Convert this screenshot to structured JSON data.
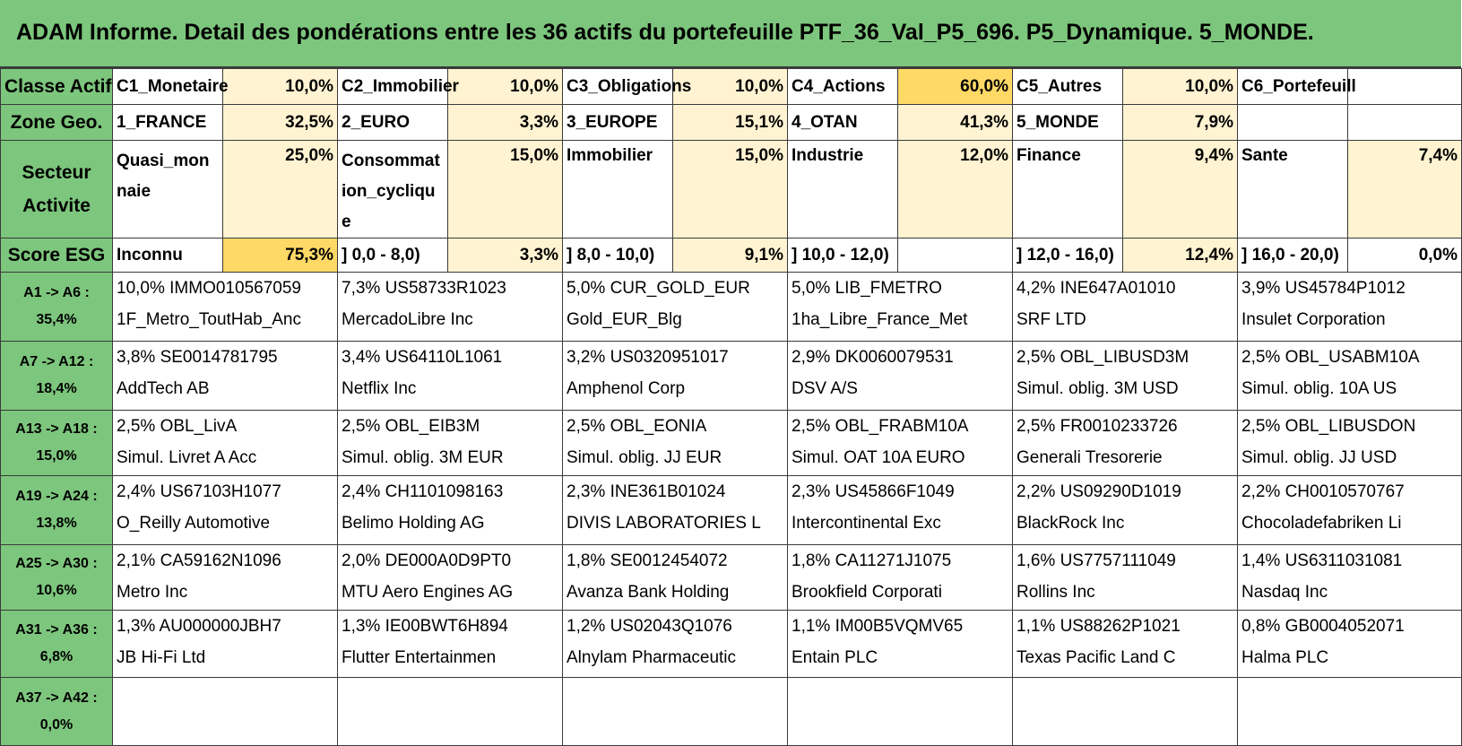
{
  "title": "ADAM Informe. Detail des pondérations entre les 36 actifs du portefeuille PTF_36_Val_P5_696. P5_Dynamique. 5_MONDE.",
  "summary_rows": [
    {
      "header": "Classe Actif",
      "cells": [
        {
          "label": "C1_Monetaire",
          "value": "10,0%"
        },
        {
          "label": "C2_Immobilier",
          "value": "10,0%"
        },
        {
          "label": "C3_Obligations",
          "value": "10,0%"
        },
        {
          "label": "C4_Actions",
          "value": "60,0%"
        },
        {
          "label": "C5_Autres",
          "value": "10,0%"
        },
        {
          "label": "C6_Portefeuill",
          "value": ""
        }
      ]
    },
    {
      "header": "Zone Geo.",
      "cells": [
        {
          "label": "1_FRANCE",
          "value": "32,5%"
        },
        {
          "label": "2_EURO",
          "value": "3,3%"
        },
        {
          "label": "3_EUROPE",
          "value": "15,1%"
        },
        {
          "label": "4_OTAN",
          "value": "41,3%"
        },
        {
          "label": "5_MONDE",
          "value": "7,9%"
        },
        {
          "label": "",
          "value": ""
        }
      ]
    },
    {
      "header": "Secteur Activite",
      "cells": [
        {
          "label": "Quasi_monnaie",
          "value": "25,0%"
        },
        {
          "label": "Consommation_cyclique",
          "value": "15,0%"
        },
        {
          "label": "Immobilier",
          "value": "15,0%"
        },
        {
          "label": "Industrie",
          "value": "12,0%"
        },
        {
          "label": "Finance",
          "value": "9,4%"
        },
        {
          "label": "Sante",
          "value": "7,4%"
        }
      ]
    },
    {
      "header": "Score ESG",
      "cells": [
        {
          "label": "Inconnu",
          "value": "75,3%"
        },
        {
          "label": "] 0,0 - 8,0)",
          "value": "3,3%"
        },
        {
          "label": "] 8,0 - 10,0)",
          "value": "9,1%"
        },
        {
          "label": "] 10,0 - 12,0)",
          "value": ""
        },
        {
          "label": "] 12,0 - 16,0)",
          "value": "12,4%"
        },
        {
          "label": "] 16,0 - 20,0)",
          "value": "0,0%"
        }
      ]
    }
  ],
  "asset_rows": [
    {
      "range": "A1 -> A6 :",
      "total": "35,4%",
      "assets": [
        {
          "line1": "10,0% IMMO010567059",
          "line2": "1F_Metro_ToutHab_Anc"
        },
        {
          "line1": "7,3% US58733R1023",
          "line2": "MercadoLibre Inc"
        },
        {
          "line1": "5,0% CUR_GOLD_EUR",
          "line2": "Gold_EUR_Blg"
        },
        {
          "line1": "5,0% LIB_FMETRO",
          "line2": "1ha_Libre_France_Met"
        },
        {
          "line1": "4,2% INE647A01010",
          "line2": "SRF LTD"
        },
        {
          "line1": "3,9% US45784P1012",
          "line2": "Insulet Corporation"
        }
      ]
    },
    {
      "range": "A7 -> A12 :",
      "total": "18,4%",
      "assets": [
        {
          "line1": "3,8% SE0014781795",
          "line2": "AddTech AB"
        },
        {
          "line1": "3,4% US64110L1061",
          "line2": "Netflix Inc"
        },
        {
          "line1": "3,2% US0320951017",
          "line2": "Amphenol Corp"
        },
        {
          "line1": "2,9% DK0060079531",
          "line2": "DSV A/S"
        },
        {
          "line1": "2,5% OBL_LIBUSD3M",
          "line2": "Simul. oblig. 3M USD"
        },
        {
          "line1": "2,5% OBL_USABM10A",
          "line2": "Simul. oblig. 10A US"
        }
      ]
    },
    {
      "range": "A13 -> A18 :",
      "total": "15,0%",
      "assets": [
        {
          "line1": "2,5% OBL_LivA",
          "line2": "Simul. Livret A Acc"
        },
        {
          "line1": "2,5% OBL_EIB3M",
          "line2": "Simul. oblig. 3M EUR"
        },
        {
          "line1": "2,5% OBL_EONIA",
          "line2": "Simul. oblig. JJ EUR"
        },
        {
          "line1": "2,5% OBL_FRABM10A",
          "line2": "Simul. OAT 10A EURO"
        },
        {
          "line1": "2,5% FR0010233726",
          "line2": "Generali Tresorerie"
        },
        {
          "line1": "2,5% OBL_LIBUSDON",
          "line2": "Simul. oblig. JJ USD"
        }
      ]
    },
    {
      "range": "A19 -> A24 :",
      "total": "13,8%",
      "assets": [
        {
          "line1": "2,4% US67103H1077",
          "line2": "O_Reilly Automotive"
        },
        {
          "line1": "2,4% CH1101098163",
          "line2": "Belimo Holding AG"
        },
        {
          "line1": "2,3% INE361B01024",
          "line2": "DIVIS LABORATORIES L"
        },
        {
          "line1": "2,3% US45866F1049",
          "line2": "Intercontinental Exc"
        },
        {
          "line1": "2,2% US09290D1019",
          "line2": "BlackRock Inc"
        },
        {
          "line1": "2,2% CH0010570767",
          "line2": "Chocoladefabriken Li"
        }
      ]
    },
    {
      "range": "A25 -> A30 :",
      "total": "10,6%",
      "assets": [
        {
          "line1": "2,1% CA59162N1096",
          "line2": "Metro Inc"
        },
        {
          "line1": "2,0% DE000A0D9PT0",
          "line2": "MTU Aero Engines AG"
        },
        {
          "line1": "1,8% SE0012454072",
          "line2": "Avanza Bank Holding"
        },
        {
          "line1": "1,8% CA11271J1075",
          "line2": "Brookfield Corporati"
        },
        {
          "line1": "1,6% US7757111049",
          "line2": "Rollins Inc"
        },
        {
          "line1": "1,4% US6311031081",
          "line2": "Nasdaq Inc"
        }
      ]
    },
    {
      "range": "A31 -> A36 :",
      "total": "6,8%",
      "assets": [
        {
          "line1": "1,3% AU000000JBH7",
          "line2": "JB Hi-Fi Ltd"
        },
        {
          "line1": "1,3% IE00BWT6H894",
          "line2": "Flutter Entertainmen"
        },
        {
          "line1": "1,2% US02043Q1076",
          "line2": "Alnylam Pharmaceutic"
        },
        {
          "line1": "1,1% IM00B5VQMV65",
          "line2": "Entain PLC"
        },
        {
          "line1": "1,1% US88262P1021",
          "line2": "Texas Pacific Land C"
        },
        {
          "line1": "0,8% GB0004052071",
          "line2": "Halma PLC"
        }
      ]
    },
    {
      "range": "A37 -> A42 :",
      "total": "0,0%",
      "assets": [
        {
          "line1": "",
          "line2": ""
        },
        {
          "line1": "",
          "line2": ""
        },
        {
          "line1": "",
          "line2": ""
        },
        {
          "line1": "",
          "line2": ""
        },
        {
          "line1": "",
          "line2": ""
        },
        {
          "line1": "",
          "line2": ""
        }
      ]
    }
  ]
}
